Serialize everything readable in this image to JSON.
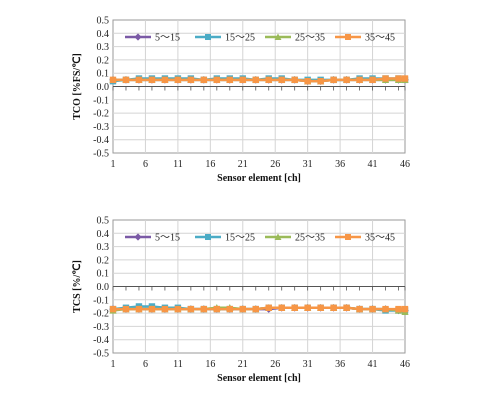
{
  "chart_data": [
    {
      "type": "line",
      "xlabel": "Sensor element [ch]",
      "ylabel": "TCO [%FS/℃]",
      "xlim": [
        1,
        46
      ],
      "ylim": [
        -0.5,
        0.5
      ],
      "x_ticks": [
        "1",
        "6",
        "11",
        "16",
        "21",
        "26",
        "31",
        "36",
        "41",
        "46"
      ],
      "y_ticks": [
        "0.5",
        "0.4",
        "0.3",
        "0.2",
        "0.1",
        "0.0",
        "-0.1",
        "-0.2",
        "-0.3",
        "-0.4",
        "-0.5"
      ],
      "grid": true,
      "legend_position": "top",
      "x": [
        1,
        3,
        5,
        7,
        9,
        11,
        13,
        15,
        17,
        19,
        21,
        23,
        25,
        27,
        29,
        31,
        33,
        35,
        37,
        39,
        41,
        43,
        45,
        46
      ],
      "series": [
        {
          "name": "5～15",
          "color": "#7b5aa6",
          "marker": "diamond",
          "values": [
            0.05,
            0.05,
            0.05,
            0.05,
            0.05,
            0.05,
            0.05,
            0.05,
            0.05,
            0.05,
            0.05,
            0.05,
            0.05,
            0.05,
            0.05,
            0.04,
            0.04,
            0.05,
            0.05,
            0.05,
            0.05,
            0.05,
            0.05,
            0.05
          ]
        },
        {
          "name": "15～25",
          "color": "#4bacc6",
          "marker": "square",
          "values": [
            0.04,
            0.05,
            0.06,
            0.06,
            0.06,
            0.06,
            0.06,
            0.05,
            0.06,
            0.06,
            0.06,
            0.05,
            0.06,
            0.06,
            0.05,
            0.05,
            0.05,
            0.05,
            0.05,
            0.06,
            0.06,
            0.06,
            0.06,
            0.05
          ]
        },
        {
          "name": "25～35",
          "color": "#9bbb59",
          "marker": "triangle",
          "values": [
            0.05,
            0.05,
            0.05,
            0.05,
            0.05,
            0.05,
            0.05,
            0.05,
            0.05,
            0.05,
            0.05,
            0.05,
            0.05,
            0.05,
            0.05,
            0.04,
            0.04,
            0.05,
            0.05,
            0.05,
            0.05,
            0.05,
            0.05,
            0.05
          ]
        },
        {
          "name": "35～45",
          "color": "#f79646",
          "marker": "square",
          "values": [
            0.05,
            0.05,
            0.05,
            0.05,
            0.05,
            0.05,
            0.05,
            0.05,
            0.05,
            0.05,
            0.05,
            0.05,
            0.05,
            0.05,
            0.05,
            0.04,
            0.04,
            0.05,
            0.05,
            0.05,
            0.05,
            0.06,
            0.06,
            0.06
          ]
        }
      ]
    },
    {
      "type": "line",
      "xlabel": "Sensor element [ch]",
      "ylabel": "TCS [%/℃]",
      "xlim": [
        1,
        46
      ],
      "ylim": [
        -0.5,
        0.5
      ],
      "x_ticks": [
        "1",
        "6",
        "11",
        "16",
        "21",
        "26",
        "31",
        "36",
        "41",
        "46"
      ],
      "y_ticks": [
        "0.5",
        "0.4",
        "0.3",
        "0.2",
        "0.1",
        "0.0",
        "-0.1",
        "-0.2",
        "-0.3",
        "-0.4",
        "-0.5"
      ],
      "grid": true,
      "legend_position": "top",
      "x": [
        1,
        3,
        5,
        7,
        9,
        11,
        13,
        15,
        17,
        19,
        21,
        23,
        25,
        27,
        29,
        31,
        33,
        35,
        37,
        39,
        41,
        43,
        45,
        46
      ],
      "series": [
        {
          "name": "5～15",
          "color": "#7b5aa6",
          "marker": "diamond",
          "values": [
            -0.17,
            -0.17,
            -0.17,
            -0.17,
            -0.17,
            -0.17,
            -0.17,
            -0.17,
            -0.17,
            -0.17,
            -0.17,
            -0.17,
            -0.17,
            -0.16,
            -0.16,
            -0.16,
            -0.16,
            -0.16,
            -0.16,
            -0.17,
            -0.17,
            -0.17,
            -0.18,
            -0.18
          ]
        },
        {
          "name": "15～25",
          "color": "#4bacc6",
          "marker": "square",
          "values": [
            -0.17,
            -0.16,
            -0.15,
            -0.15,
            -0.16,
            -0.16,
            -0.17,
            -0.17,
            -0.17,
            -0.17,
            -0.17,
            -0.17,
            -0.16,
            -0.16,
            -0.16,
            -0.16,
            -0.16,
            -0.16,
            -0.16,
            -0.17,
            -0.17,
            -0.18,
            -0.18,
            -0.18
          ]
        },
        {
          "name": "25～35",
          "color": "#9bbb59",
          "marker": "triangle",
          "values": [
            -0.18,
            -0.17,
            -0.17,
            -0.17,
            -0.17,
            -0.17,
            -0.17,
            -0.17,
            -0.16,
            -0.16,
            -0.17,
            -0.17,
            -0.16,
            -0.16,
            -0.16,
            -0.16,
            -0.16,
            -0.16,
            -0.16,
            -0.17,
            -0.17,
            -0.17,
            -0.18,
            -0.19
          ]
        },
        {
          "name": "35～45",
          "color": "#f79646",
          "marker": "square",
          "values": [
            -0.17,
            -0.17,
            -0.17,
            -0.17,
            -0.17,
            -0.17,
            -0.17,
            -0.17,
            -0.17,
            -0.17,
            -0.17,
            -0.17,
            -0.16,
            -0.16,
            -0.16,
            -0.16,
            -0.16,
            -0.16,
            -0.16,
            -0.17,
            -0.17,
            -0.17,
            -0.17,
            -0.17
          ]
        }
      ]
    }
  ]
}
